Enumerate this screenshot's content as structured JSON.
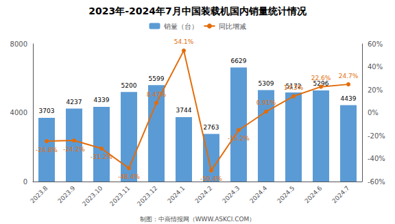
{
  "chart_data": {
    "type": "bar",
    "title": "2023年-2024年7月中国装载机国内销量统计情况",
    "annotations": [
      "制图：中商情报网（WWW.ASKCI.COM）"
    ],
    "categories": [
      "2023.8",
      "2023.9",
      "2023.10",
      "2023.11",
      "2023.12",
      "2024.1",
      "2024.2",
      "2024.3",
      "2024.4",
      "2024.5",
      "2024.6",
      "2024.7"
    ],
    "series": [
      {
        "name": "销量（台）",
        "type": "bar",
        "color": "#5b9bd5",
        "data_labels": true,
        "values": [
          3703,
          4237,
          4339,
          5200,
          5599,
          3744,
          2763,
          6629,
          5309,
          5172,
          5296,
          4439
        ]
      },
      {
        "name": "同比增减",
        "type": "line",
        "axis": "y2",
        "color": "#e36c09",
        "marker": "circle",
        "data_labels": true,
        "values": [
          -24.8,
          -24.2,
          -31.2,
          -48.4,
          8.47,
          54.1,
          -50.4,
          -15.2,
          0.91,
          14.3,
          22.6,
          24.7
        ],
        "value_labels": [
          "-24.8%",
          "-24.2%",
          "-31.2%",
          "-48.4%",
          "8.47%",
          "54.1%",
          "-50.4%",
          "-15.2%",
          "0.91%",
          "14.3%",
          "22.6%",
          "24.7%"
        ]
      }
    ],
    "ylim": [
      0,
      8000
    ],
    "yticks": [
      0,
      4000,
      8000
    ],
    "y2lim": [
      -60,
      60
    ],
    "y2ticks": [
      {
        "value": -60,
        "label": "-60%"
      },
      {
        "value": -40,
        "label": "-40%"
      },
      {
        "value": -20,
        "label": "-20%"
      },
      {
        "value": 0,
        "label": "0%"
      },
      {
        "value": 20,
        "label": "20%"
      },
      {
        "value": 40,
        "label": "40%"
      },
      {
        "value": 60,
        "label": "60%"
      }
    ],
    "grid": false,
    "legend": "top"
  }
}
